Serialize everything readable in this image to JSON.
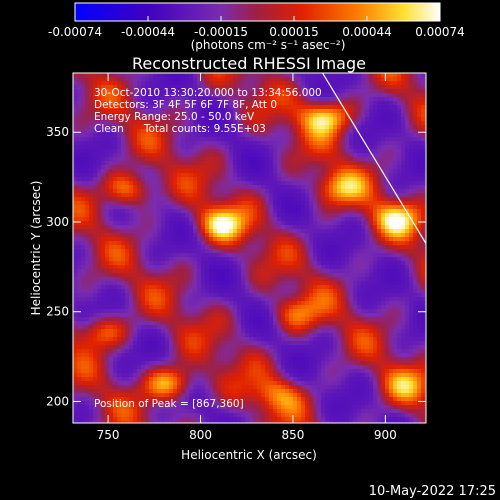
{
  "chart_data": {
    "type": "heatmap",
    "title": "Reconstructed RHESSI Image",
    "xlabel": "Heliocentric X (arcsec)",
    "ylabel": "Heliocentric Y (arcsec)",
    "xlim": [
      731,
      922
    ],
    "ylim": [
      188,
      383
    ],
    "xticks": [
      750,
      800,
      850,
      900
    ],
    "yticks": [
      200,
      250,
      300,
      350
    ],
    "colorbar": {
      "min": -0.00074,
      "max": 0.00074,
      "ticks": [
        "-0.00074",
        "-0.00044",
        "-0.00015",
        "0.00015",
        "0.00044",
        "0.00074"
      ],
      "unit_label": "(photons cm⁻² s⁻¹ asec⁻²)",
      "colormap": [
        "#0000ff",
        "#4000c0",
        "#7a2cb0",
        "#a02040",
        "#e02000",
        "#ff8000",
        "#ffe030",
        "#ffffff"
      ]
    },
    "info_lines": [
      "30-Oct-2010 13:30:20.000 to 13:34:56.000",
      "Detectors: 3F 4F 5F 6F 7F 8F, Att 0",
      "Energy Range: 25.0 - 50.0 keV",
      "Clean      Total counts: 9.55E+03"
    ],
    "peak_label": "Position of Peak = [867,360]",
    "peak_position": [
      867,
      360
    ],
    "limb_line": [
      [
        866,
        383
      ],
      [
        922,
        288
      ]
    ],
    "bright_regions": [
      {
        "x": 783,
        "y": 211,
        "intensity": 1.0
      },
      {
        "x": 760,
        "y": 319,
        "intensity": 0.9
      },
      {
        "x": 867,
        "y": 360,
        "intensity": 1.0
      },
      {
        "x": 810,
        "y": 300,
        "intensity": 0.85
      },
      {
        "x": 873,
        "y": 320,
        "intensity": 0.7
      },
      {
        "x": 905,
        "y": 303,
        "intensity": 0.75
      },
      {
        "x": 745,
        "y": 240,
        "intensity": 0.75
      },
      {
        "x": 850,
        "y": 250,
        "intensity": 0.6
      },
      {
        "x": 840,
        "y": 205,
        "intensity": 0.55
      },
      {
        "x": 910,
        "y": 210,
        "intensity": 0.5
      }
    ],
    "grid": false
  },
  "footer": {
    "date": "10-May-2022 17:25"
  }
}
